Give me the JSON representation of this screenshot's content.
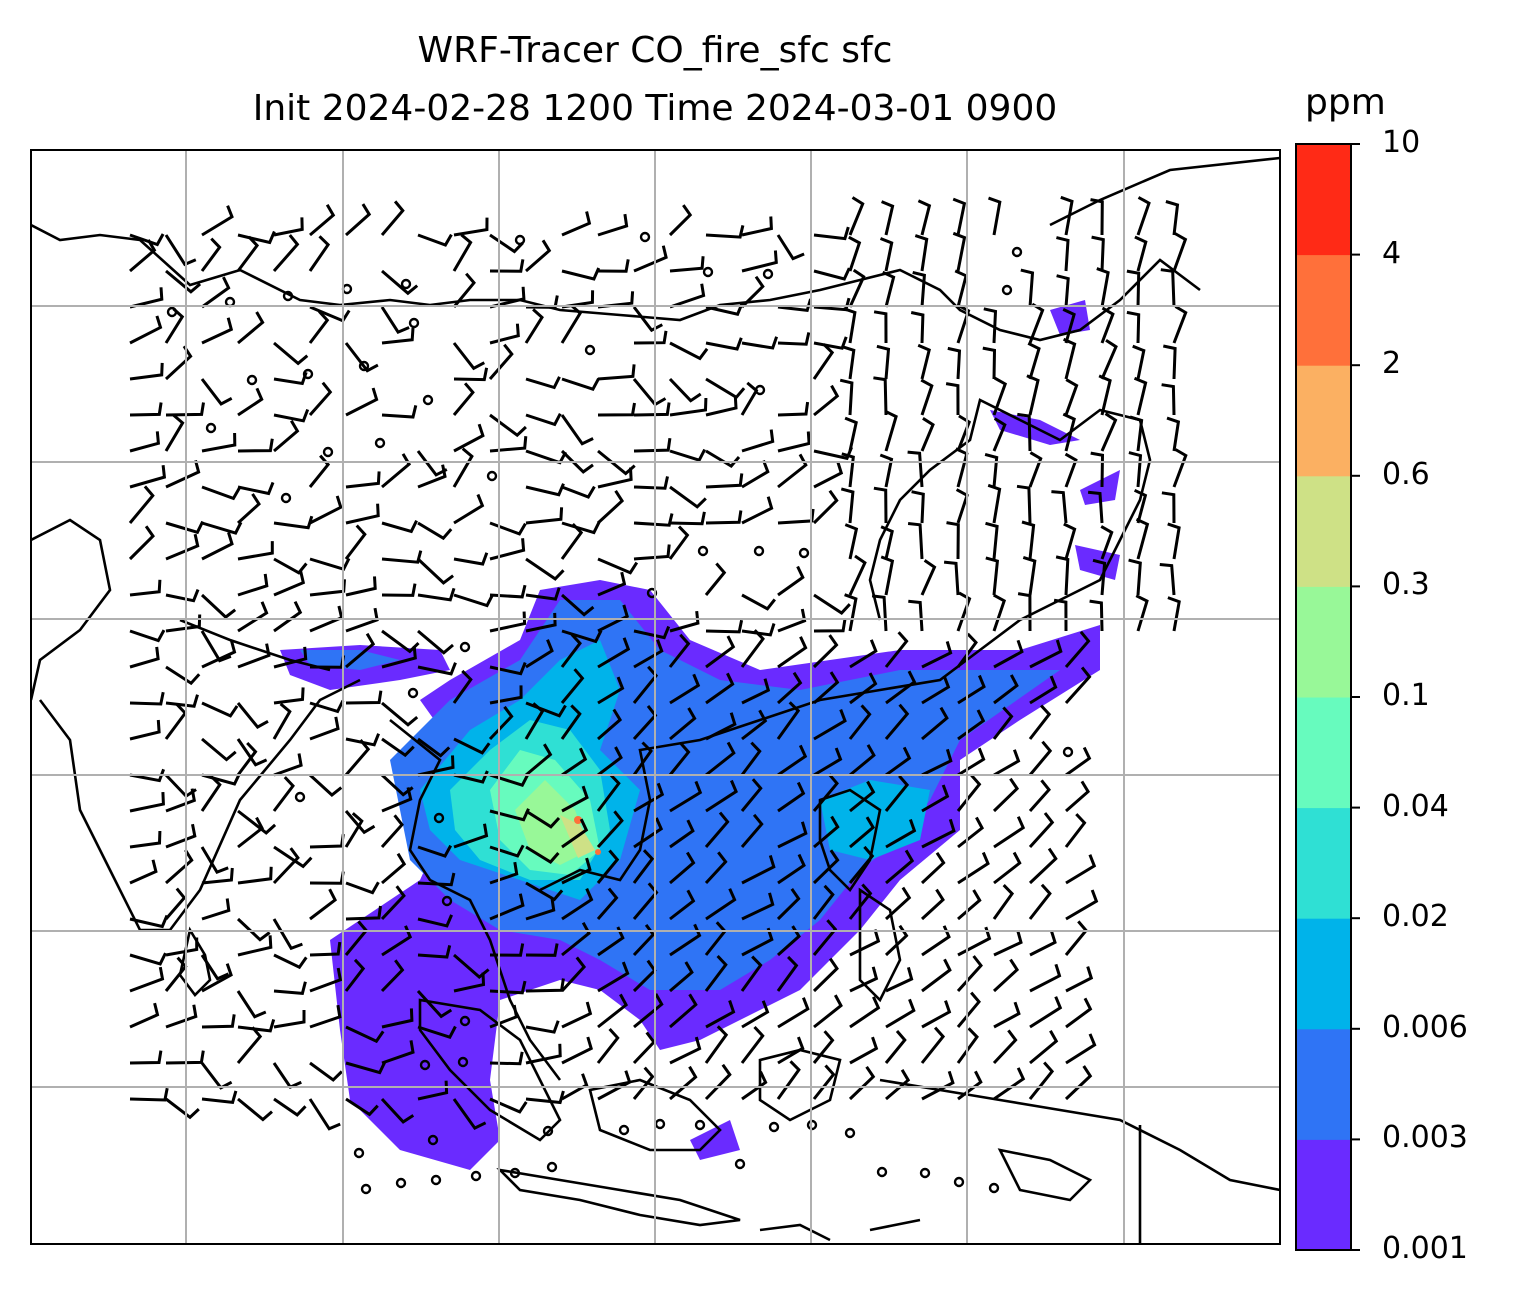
{
  "title": {
    "line1": "WRF-Tracer CO_fire_sfc sfc",
    "line2": "Init 2024-02-28 1200 Time 2024-03-01 0900"
  },
  "colorbar": {
    "unit": "ppm",
    "ticks": [
      "0.001",
      "0.003",
      "0.006",
      "0.02",
      "0.04",
      "0.1",
      "0.3",
      "0.6",
      "2",
      "4",
      "10"
    ],
    "colors": [
      "#6a2bff",
      "#2f74f5",
      "#00b3ea",
      "#2fe0d4",
      "#67fbbe",
      "#98f898",
      "#cee186",
      "#fbb062",
      "#ff703a",
      "#ff2a16"
    ]
  },
  "legend_levels": "colorbar",
  "map": {
    "type": "filled-contour with wind barbs",
    "variable": "CO_fire_sfc",
    "gridlines": true,
    "coastlines": true,
    "border_color": "#000000",
    "gridline_color": "#b0b0b0"
  }
}
